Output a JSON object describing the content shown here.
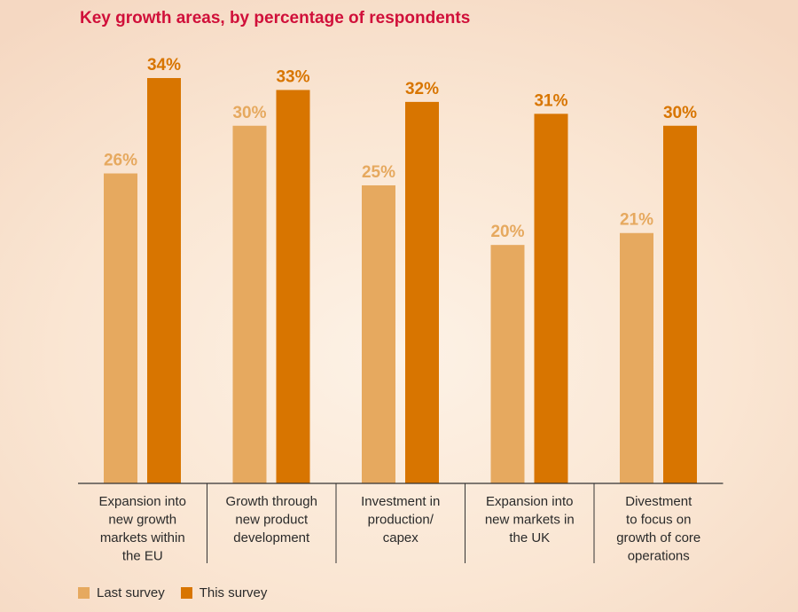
{
  "colors": {
    "title": "#d0103a",
    "last_survey": "#e6a95f",
    "this_survey": "#d87500",
    "axis": "#333333"
  },
  "chart_data": {
    "type": "bar",
    "title": "Key growth areas, by percentage of respondents",
    "categories": [
      [
        "Expansion into",
        "new growth",
        "markets within",
        "the EU"
      ],
      [
        "Growth through",
        "new product",
        "development"
      ],
      [
        "Investment in",
        "production/",
        "capex"
      ],
      [
        "Expansion into",
        "new markets in",
        "the UK"
      ],
      [
        "Divestment",
        "to focus on",
        "growth of core",
        "operations"
      ]
    ],
    "series": [
      {
        "name": "Last survey",
        "values": [
          26,
          30,
          25,
          20,
          21
        ],
        "labels": [
          "26%",
          "30%",
          "25%",
          "20%",
          "21%"
        ]
      },
      {
        "name": "This survey",
        "values": [
          34,
          33,
          32,
          31,
          30
        ],
        "labels": [
          "34%",
          "33%",
          "32%",
          "31%",
          "30%"
        ]
      }
    ],
    "ylim": [
      0,
      34
    ],
    "xlabel": "",
    "ylabel": "",
    "grid": false,
    "legend_position": "bottom-left"
  }
}
